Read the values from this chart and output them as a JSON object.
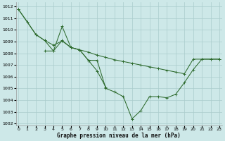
{
  "background_color": "#cde8e8",
  "grid_color": "#aacccc",
  "line_color": "#2d6a2d",
  "ylabel_min": 1002,
  "ylabel_max": 1012,
  "xlabel_min": 0,
  "xlabel_max": 23,
  "xlabel_label": "Graphe pression niveau de la mer (hPa)",
  "series": [
    {
      "x": [
        0,
        2,
        3,
        4,
        5,
        6,
        7,
        8,
        9,
        10,
        11,
        12,
        13,
        14,
        15,
        16,
        17,
        18,
        19,
        20,
        21,
        22,
        23
      ],
      "y": [
        1011.75,
        1009.6,
        1009.1,
        1008.7,
        1009.05,
        1008.5,
        1008.3,
        1008.1,
        1007.85,
        1007.65,
        1007.45,
        1007.3,
        1007.15,
        1007.0,
        1006.85,
        1006.7,
        1006.55,
        1006.4,
        1006.25,
        1007.5,
        1007.5,
        1007.5,
        1007.5
      ]
    },
    {
      "x": [
        0,
        1,
        2,
        3,
        4,
        5,
        6,
        7,
        8,
        9,
        10
      ],
      "y": [
        1011.75,
        1010.7,
        1009.6,
        1009.1,
        1008.2,
        1010.3,
        1008.5,
        1008.3,
        1007.4,
        1006.5,
        1005.1
      ]
    },
    {
      "x": [
        3,
        4,
        5,
        6,
        7,
        8,
        9,
        10,
        11,
        12,
        13,
        14,
        15,
        16,
        17,
        18,
        19,
        20,
        21,
        22,
        23
      ],
      "y": [
        1008.2,
        1008.2,
        1009.1,
        1008.5,
        1008.3,
        1007.4,
        1007.4,
        1005.0,
        1004.7,
        1004.3,
        1002.4,
        1003.1,
        1004.3,
        1004.3,
        1004.2,
        1004.5,
        1005.5,
        1006.6,
        1007.5,
        1007.5,
        1007.5
      ]
    }
  ],
  "figsize": [
    3.2,
    2.0
  ],
  "dpi": 100
}
